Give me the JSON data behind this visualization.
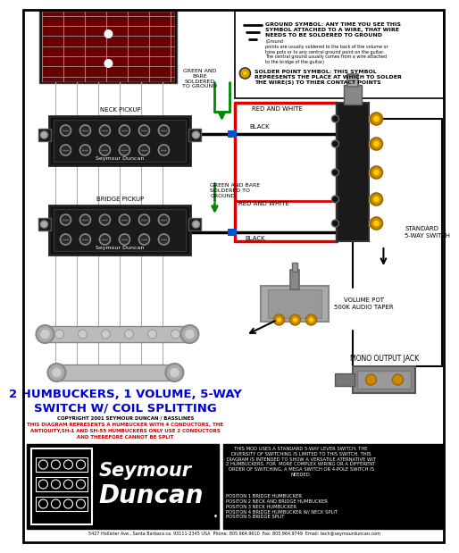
{
  "bg_color": "#ffffff",
  "title_line1": "2 HUMBUCKERS, 1 VOLUME, 5-WAY",
  "title_line2": "SWITCH W/ COIL SPLITTING",
  "title_color": "#0000cc",
  "subtitle": "COPYRIGHT 2001 SEYMOUR DUNCAN / BASSLINES",
  "subtitle_color": "#000000",
  "warning_line1": "THIS DIAGRAM REPRESENTS A HUMBUCKER WITH 4 CONDUCTORS, THE",
  "warning_line2": "ANTIQUITY,SH-1 AND SH-55 HUMBUCKERS ONLY USE 2 CONDUCTORS",
  "warning_line3": "AND THEREFORE CANNOT BE SPLIT",
  "warning_color": "#cc0000",
  "footer": "5427 Hollister Ave., Santa Barbara ca. 93111-2345 USA  Phone: 805.964.9610  Fax: 805.964.9749  Email: tech@seymourduncan.com",
  "ground_label_top": "GROUND SYMBOL: ANY TIME YOU SEE THIS\nSYMBOL ATTACHED TO A WIRE, THAT WIRE\nNEEDS TO BE SOLDERED TO GROUND",
  "ground_label_small": "(Ground\npoints are usually soldered to the back of the volume or\ntone pots or to any central ground point on the guitar.\nThe central ground usually comes from a wire attached\nto the bridge of the guitar)",
  "solder_label": "SOLDER POINT SYMBOL: THIS SYMBOL\nREPRESENTS THE PLACE AT WHICH TO SOLDER\nTHE WIRE(S) TO THIER CONTACT POINTS",
  "right_box_text_top": "THIS MOD USES A STANDARD 5-WAY LEVER SWITCH. THE\nDIVERSITY OF SWITCHING IS LIMITED TO THIS SWITCH. THIS\nDIAGRAM IS INTENDED TO SHOW A VERSATILE ATERNATIVE WIT\n2 HUMBUCKERS. FOR  MORE COMPLEX WIRING OR A DIFFERENT\nORDER OF SWITCHING, A MEGA SWITCH OR 4-POLE SWITCH IS\nNEEDED.",
  "right_box_positions": "POSITON 1 BRIDGE HUMBUCKER\nPOSITON 2 NECK AND BRIDGE HUMBUCKER\nPOSITON 3 NECK HUMBUCKER\nPOSITON 4 BRIDGE HUMBUCKER W/ NECK SPLIT\nPOSITON 5 BRIDGE SPLIT",
  "neck_label": "NECK PICKUP",
  "bridge_label": "BRIDGE PICKUP",
  "switch_label": "STANDARD\n5-WAY SWITCH",
  "volume_label": "VOLUME POT\n500K AUDIO TAPER",
  "jack_label": "MONO OUTPUT JACK",
  "green_bare_top": "GREEN AND\nBARE\nSOLDERED\nTO GROUND",
  "green_bare_mid": "GREEN AND BARE\nSOLDERED TO\nGROUND",
  "red_white_top": "RED AND WHITE",
  "red_white_mid": "RED AND WHITE",
  "black_top": "BLACK",
  "black_bot": "BLACK",
  "fretboard_color": "#6b0000",
  "pickup_body_color": "#111111",
  "pickup_pole_color": "#cccccc",
  "switch_body_color": "#222222",
  "contact_color": "#cc8800",
  "wire_red": "#dd0000",
  "wire_green": "#008800",
  "wire_black": "#000000",
  "wire_blue": "#0055cc"
}
